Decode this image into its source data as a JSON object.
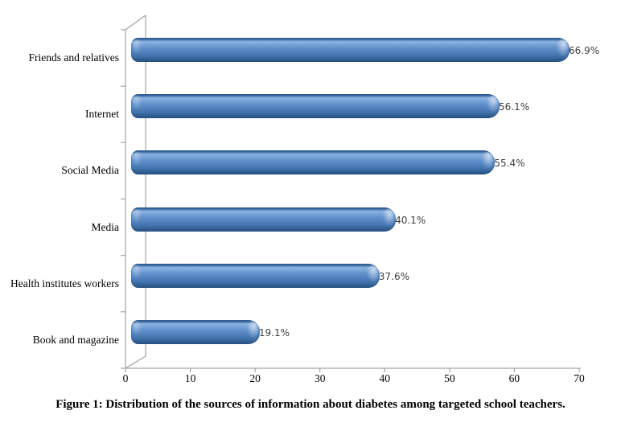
{
  "figure": {
    "caption": "Figure 1: Distribution of the sources of information about diabetes among targeted school teachers."
  },
  "chart_data": {
    "type": "bar",
    "orientation": "horizontal",
    "style": "3d-rounded-cylinder",
    "title": "",
    "categories": [
      "Friends and relatives",
      "Internet",
      "Social Media",
      "Media",
      "Health institutes workers",
      "Book and magazine"
    ],
    "values": [
      66.9,
      56.1,
      55.4,
      40.1,
      37.6,
      19.1
    ],
    "value_labels": [
      "66.9%",
      "56.1%",
      "55.4%",
      "40.1%",
      "37.6%",
      "19.1%"
    ],
    "x_ticks": [
      "0",
      "10",
      "20",
      "30",
      "40",
      "50",
      "60",
      "70"
    ],
    "xlim": [
      0,
      70
    ],
    "xlabel": "",
    "ylabel": "",
    "grid": "off",
    "legend": "none",
    "bar_color": "#4f81bd",
    "axis_color": "#a3a3a3"
  }
}
